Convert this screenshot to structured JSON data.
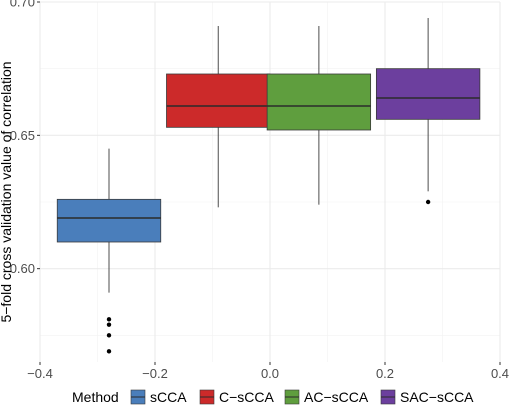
{
  "chart_data": {
    "type": "boxplot",
    "title": "",
    "xlabel": "",
    "ylabel": "5−fold cross validation value of correlation",
    "xlim": [
      -0.4,
      0.4
    ],
    "ylim": [
      0.565,
      0.7
    ],
    "x_ticks": [
      -0.4,
      -0.2,
      0.0,
      0.2,
      0.4
    ],
    "x_tick_labels": [
      "−0.4",
      "−0.2",
      "0.0",
      "0.2",
      "0.4"
    ],
    "y_ticks": [
      0.6,
      0.65,
      0.7
    ],
    "y_tick_labels": [
      "0.60",
      "0.65",
      "0.70"
    ],
    "grid": true,
    "legend": {
      "title": "Method",
      "position": "bottom"
    },
    "series": [
      {
        "name": "sCCA",
        "color": "#4a7ebb",
        "x_center": -0.28,
        "x_width": 0.18,
        "q1": 0.61,
        "median": 0.619,
        "q3": 0.626,
        "whisker_low": 0.591,
        "whisker_high": 0.645,
        "outliers": [
          0.581,
          0.579,
          0.575,
          0.569
        ]
      },
      {
        "name": "C−sCCA",
        "color": "#cc2a2a",
        "x_center": -0.09,
        "x_width": 0.18,
        "q1": 0.653,
        "median": 0.661,
        "q3": 0.673,
        "whisker_low": 0.623,
        "whisker_high": 0.691,
        "outliers": []
      },
      {
        "name": "AC−sCCA",
        "color": "#5f9e3e",
        "x_center": 0.085,
        "x_width": 0.18,
        "q1": 0.652,
        "median": 0.661,
        "q3": 0.673,
        "whisker_low": 0.624,
        "whisker_high": 0.691,
        "outliers": []
      },
      {
        "name": "SAC−sCCA",
        "color": "#6c3f9e",
        "x_center": 0.275,
        "x_width": 0.18,
        "q1": 0.656,
        "median": 0.664,
        "q3": 0.675,
        "whisker_low": 0.629,
        "whisker_high": 0.694,
        "outliers": [
          0.625
        ]
      }
    ]
  }
}
